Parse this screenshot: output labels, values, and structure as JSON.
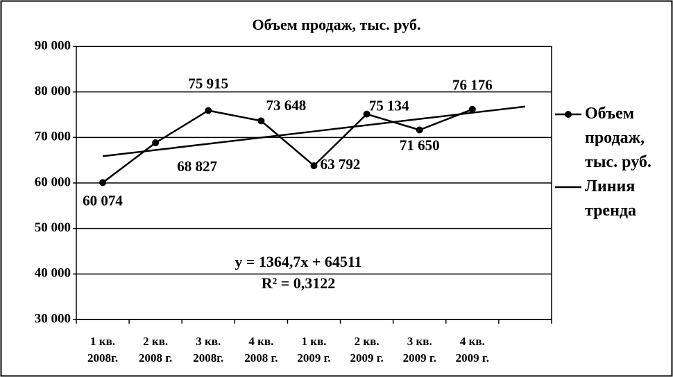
{
  "chart_data": {
    "type": "line",
    "title": "Объем продаж, тыс. руб.",
    "categories": [
      "1 кв.\n2008г.",
      "2 кв.\n2008 г.",
      "3 кв.\n2008г.",
      "4 кв.\n2008 г.",
      "1 кв.\n2009 г.",
      "2 кв.\n2009 г.",
      "3 кв.\n2009 г.",
      "4 кв.\n2009 г.",
      null
    ],
    "series": [
      {
        "name": "Объем продаж, тыс. руб.",
        "color": "#000000",
        "marker": true,
        "values": [
          60074,
          68827,
          75915,
          73648,
          63792,
          75134,
          71650,
          76176,
          null
        ],
        "value_labels": [
          "60 074",
          "68 827",
          "75 915",
          "73 648",
          "63 792",
          "75 134",
          "71 650",
          "76 176",
          null
        ]
      },
      {
        "name": "Линия тренда",
        "color": "#000000",
        "marker": false,
        "values": [
          65876,
          67240,
          68605,
          69970,
          71335,
          72699,
          74064,
          75429,
          76794
        ]
      }
    ],
    "annotations": [
      "y = 1364,7x + 64511",
      "R² = 0,3122"
    ],
    "ylim": [
      30000,
      90000
    ],
    "yticks": [
      {
        "value": 30000,
        "label": "30 000"
      },
      {
        "value": 40000,
        "label": "40 000"
      },
      {
        "value": 50000,
        "label": "50 000"
      },
      {
        "value": 60000,
        "label": "60 000"
      },
      {
        "value": 70000,
        "label": "70 000"
      },
      {
        "value": 80000,
        "label": "80 000"
      },
      {
        "value": 90000,
        "label": "90 000"
      }
    ],
    "grid": true,
    "legend": "right"
  }
}
